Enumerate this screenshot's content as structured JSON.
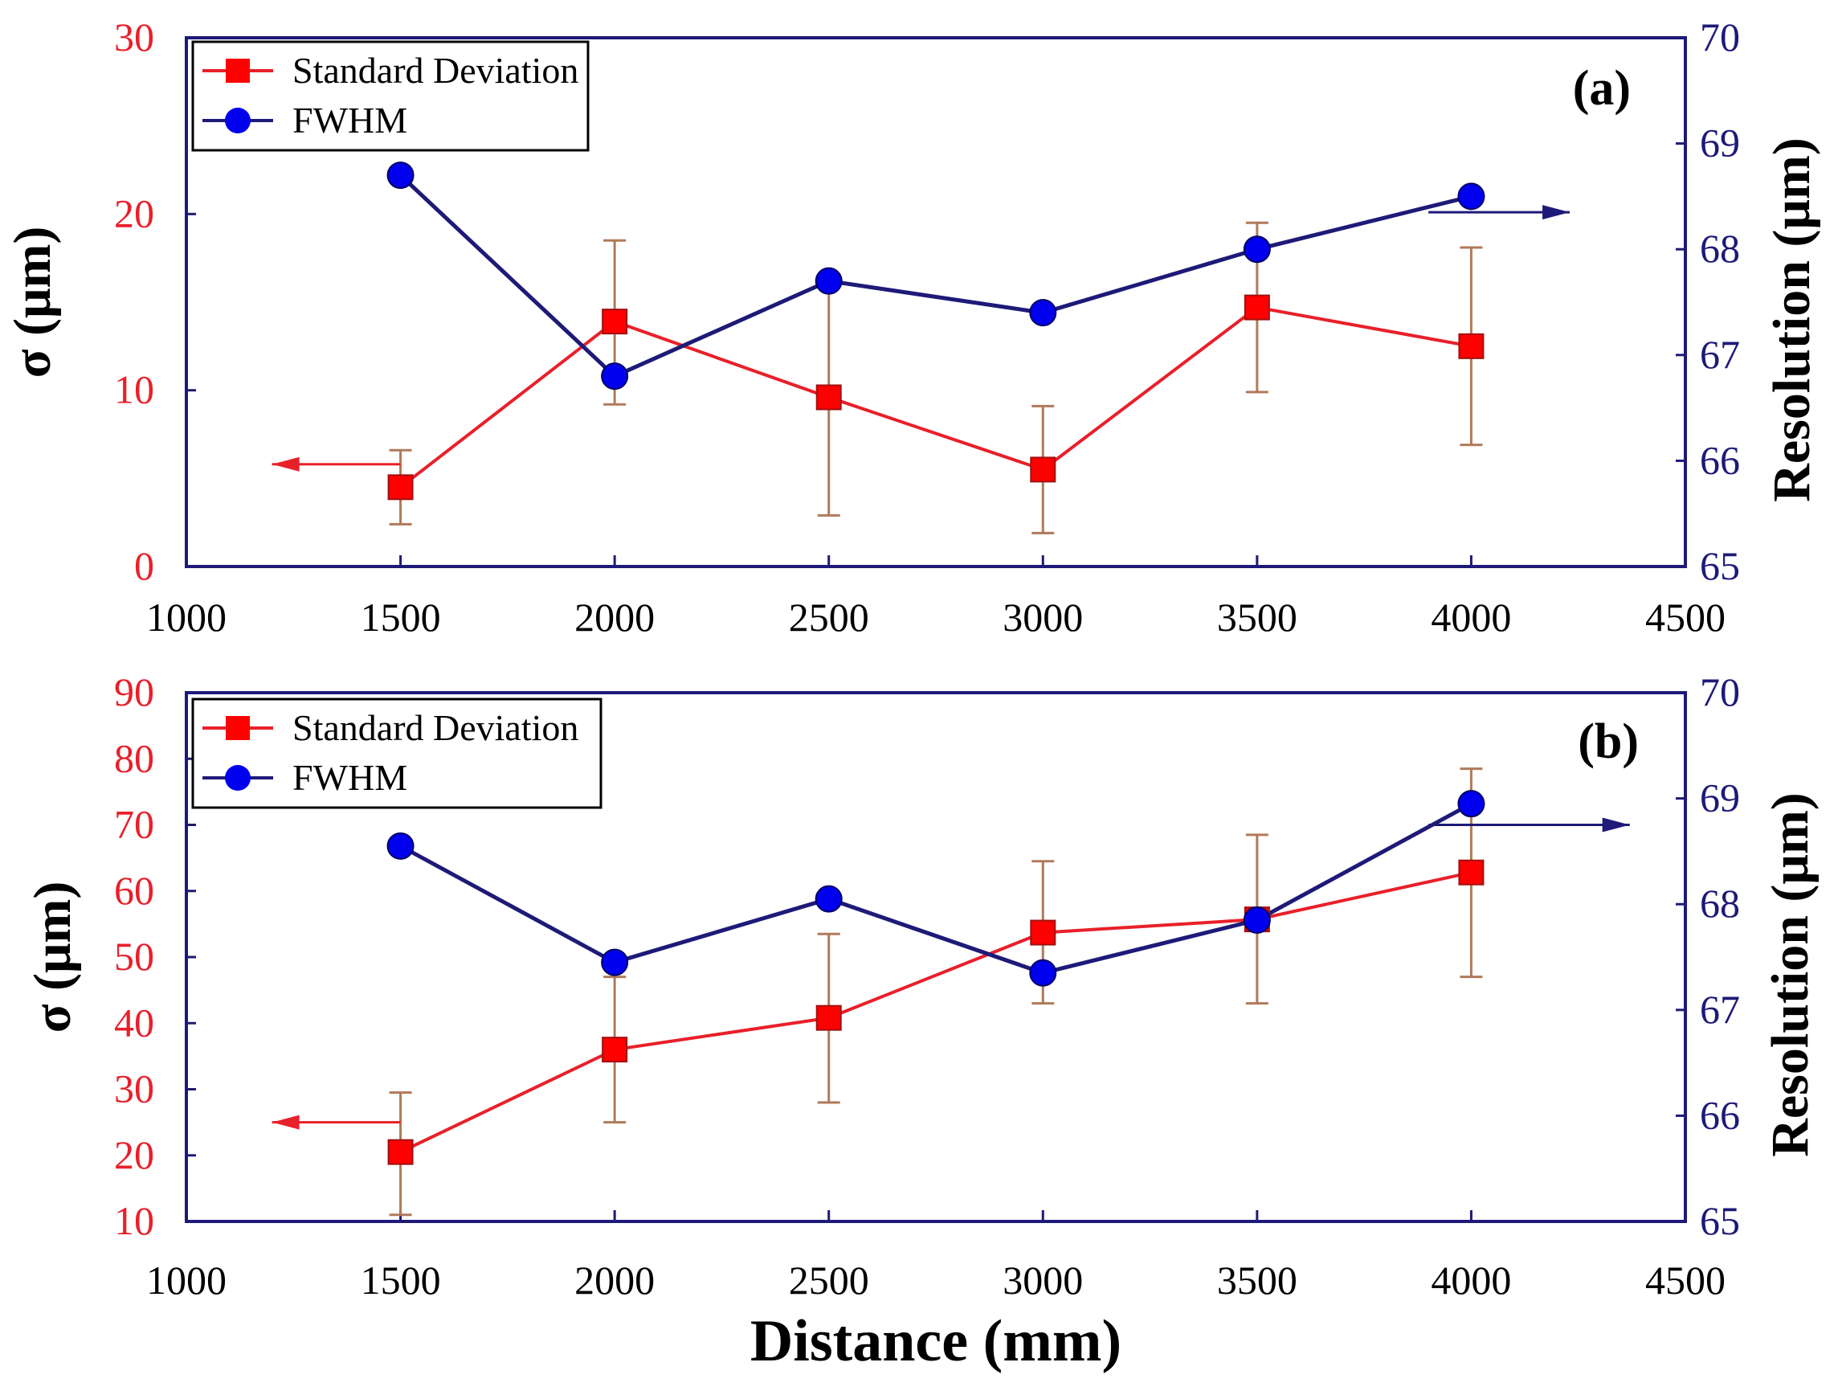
{
  "colors": {
    "std": "#ff0000",
    "std_line": "#e8202a",
    "fwhm": "#0000ee",
    "fwhm_line": "#1e1a78",
    "axis": "#1e1a78",
    "std_error": "#b07a5a"
  },
  "figure": {
    "xlabel": "Distance (mm)"
  },
  "chart_data": [
    {
      "panel": "a",
      "type": "line",
      "title": "(a)",
      "xlabel": "Distance (mm)",
      "ylabel": "σ (μm)",
      "y2label": "Resolution (μm)",
      "xlim": [
        1000,
        4500
      ],
      "ylim": [
        0,
        30
      ],
      "y2lim": [
        65,
        70
      ],
      "xticks": [
        1000,
        1500,
        2000,
        2500,
        3000,
        3500,
        4000,
        4500
      ],
      "yticks": [
        0,
        10,
        20,
        30
      ],
      "y2ticks": [
        65,
        66,
        67,
        68,
        69,
        70
      ],
      "legend": [
        "Standard Deviation",
        "FWHM"
      ],
      "legend_position": "top-left",
      "series": [
        {
          "name": "Standard Deviation",
          "axis": "left",
          "marker": "square",
          "x": [
            1500,
            2000,
            2500,
            3000,
            3500,
            4000
          ],
          "values": [
            4.5,
            13.9,
            9.6,
            5.5,
            14.7,
            12.5
          ],
          "error_low": [
            2.4,
            9.2,
            2.9,
            1.9,
            9.9,
            6.9
          ],
          "error_high": [
            6.6,
            18.5,
            16.3,
            9.1,
            19.5,
            18.1
          ]
        },
        {
          "name": "FWHM",
          "axis": "right",
          "marker": "circle",
          "x": [
            1500,
            2000,
            2500,
            3000,
            3500,
            4000
          ],
          "values": [
            68.7,
            66.8,
            67.7,
            67.4,
            68.0,
            68.5
          ]
        }
      ],
      "annotations": [
        {
          "type": "arrow",
          "axis": "left",
          "direction": "left",
          "from_x": 1500,
          "to_x": 1200,
          "y": 5.8
        },
        {
          "type": "arrow",
          "axis": "right",
          "direction": "right",
          "from_x": 3900,
          "to_x": 4230,
          "y": 68.35
        }
      ]
    },
    {
      "panel": "b",
      "type": "line",
      "title": "(b)",
      "xlabel": "Distance (mm)",
      "ylabel": "σ (μm)",
      "y2label": "Resolution (μm)",
      "xlim": [
        1000,
        4500
      ],
      "ylim": [
        10,
        90
      ],
      "y2lim": [
        65,
        70
      ],
      "xticks": [
        1000,
        1500,
        2000,
        2500,
        3000,
        3500,
        4000,
        4500
      ],
      "yticks": [
        10,
        20,
        30,
        40,
        50,
        60,
        70,
        80,
        90
      ],
      "y2ticks": [
        65,
        66,
        67,
        68,
        69,
        70
      ],
      "legend": [
        "Standard Deviation",
        "FWHM"
      ],
      "legend_position": "top-left",
      "series": [
        {
          "name": "Standard Deviation",
          "axis": "left",
          "marker": "square",
          "x": [
            1500,
            2000,
            2500,
            3000,
            3500,
            4000
          ],
          "values": [
            20.5,
            36.0,
            40.8,
            53.7,
            55.7,
            62.8
          ],
          "error_low": [
            11.0,
            25.0,
            28.0,
            43.0,
            43.0,
            47.0
          ],
          "error_high": [
            29.5,
            47.0,
            53.5,
            64.5,
            68.5,
            78.5
          ]
        },
        {
          "name": "FWHM",
          "axis": "right",
          "marker": "circle",
          "x": [
            1500,
            2000,
            2500,
            3000,
            3500,
            4000
          ],
          "values": [
            68.55,
            67.45,
            68.05,
            67.35,
            67.85,
            68.95
          ]
        }
      ],
      "annotations": [
        {
          "type": "arrow",
          "axis": "left",
          "direction": "left",
          "from_x": 1500,
          "to_x": 1200,
          "y": 25.0
        },
        {
          "type": "arrow",
          "axis": "right",
          "direction": "right",
          "from_x": 3900,
          "to_x": 4370,
          "y": 68.75
        }
      ]
    }
  ]
}
